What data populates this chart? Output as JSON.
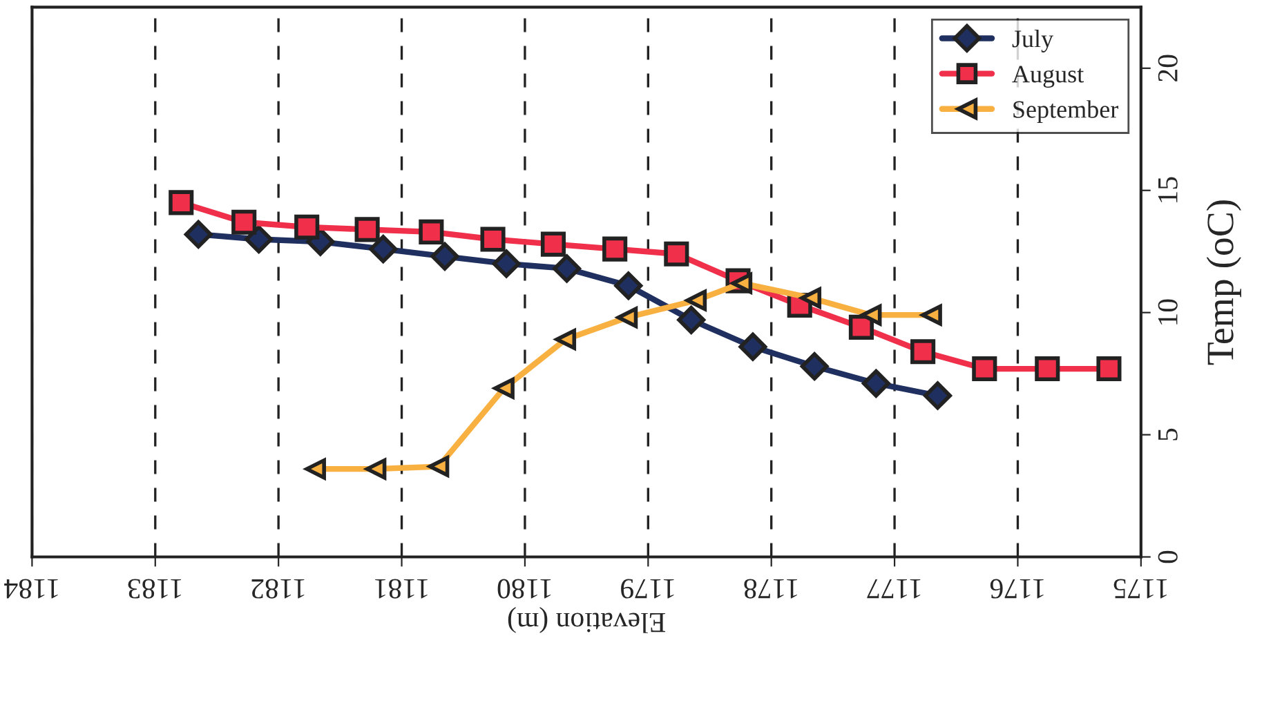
{
  "chart_data": {
    "type": "line",
    "xlabel": "Elevation (m)",
    "ylabel": "Temp (oC)",
    "xlim": [
      1184,
      1175
    ],
    "xticks": [
      1184,
      1183,
      1182,
      1181,
      1180,
      1179,
      1178,
      1177,
      1176,
      1175
    ],
    "ylim": [
      0,
      22.5
    ],
    "yticks": [
      0,
      5,
      10,
      15,
      20
    ],
    "grid": "x",
    "legend": "top right",
    "series": [
      {
        "name": "July",
        "color": "#1f2f5f",
        "marker": "diamond",
        "x": [
          1182.65,
          1182.16,
          1181.66,
          1181.15,
          1180.65,
          1180.15,
          1179.66,
          1179.16,
          1178.65,
          1178.15,
          1177.65,
          1177.15,
          1176.65
        ],
        "values": [
          13.2,
          13.0,
          12.9,
          12.6,
          12.3,
          12.0,
          11.8,
          11.1,
          9.7,
          8.6,
          7.8,
          7.1,
          6.6
        ]
      },
      {
        "name": "August",
        "color": "#f0304a",
        "marker": "square",
        "x": [
          1182.79,
          1182.28,
          1181.77,
          1181.28,
          1180.76,
          1180.26,
          1179.77,
          1179.27,
          1178.77,
          1178.27,
          1177.77,
          1177.27,
          1176.77,
          1176.27,
          1175.76,
          1175.26
        ],
        "values": [
          14.5,
          13.7,
          13.5,
          13.4,
          13.3,
          13.0,
          12.8,
          12.6,
          12.4,
          11.3,
          10.3,
          9.4,
          8.4,
          7.7,
          7.7,
          7.7
        ]
      },
      {
        "name": "September",
        "color": "#f8b040",
        "marker": "triangle",
        "x": [
          1181.7,
          1181.21,
          1180.7,
          1180.17,
          1179.67,
          1179.17,
          1178.61,
          1178.24,
          1177.68,
          1177.19,
          1176.7
        ],
        "values": [
          3.6,
          3.6,
          3.7,
          6.9,
          8.9,
          9.8,
          10.5,
          11.2,
          10.6,
          9.9,
          9.9
        ]
      }
    ]
  }
}
